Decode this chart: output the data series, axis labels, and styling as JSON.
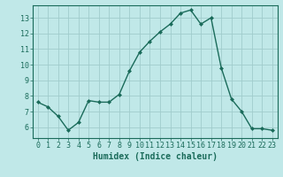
{
  "xlabel": "Humidex (Indice chaleur)",
  "x": [
    0,
    1,
    2,
    3,
    4,
    5,
    6,
    7,
    8,
    9,
    10,
    11,
    12,
    13,
    14,
    15,
    16,
    17,
    18,
    19,
    20,
    21,
    22,
    23
  ],
  "y": [
    7.6,
    7.3,
    6.7,
    5.8,
    6.3,
    7.7,
    7.6,
    7.6,
    8.1,
    9.6,
    10.8,
    11.5,
    12.1,
    12.6,
    13.3,
    13.5,
    12.6,
    13.0,
    9.8,
    7.8,
    7.0,
    5.9,
    5.9,
    5.8
  ],
  "line_color": "#1a6b5a",
  "marker": "D",
  "marker_size": 2.0,
  "bg_color": "#c0e8e8",
  "grid_color": "#a0cccc",
  "text_color": "#1a6b5a",
  "ylim": [
    5.3,
    13.8
  ],
  "yticks": [
    6,
    7,
    8,
    9,
    10,
    11,
    12,
    13
  ],
  "xlim": [
    -0.5,
    23.5
  ],
  "xticks": [
    0,
    1,
    2,
    3,
    4,
    5,
    6,
    7,
    8,
    9,
    10,
    11,
    12,
    13,
    14,
    15,
    16,
    17,
    18,
    19,
    20,
    21,
    22,
    23
  ],
  "xlabel_fontsize": 7.0,
  "tick_fontsize": 6.0
}
